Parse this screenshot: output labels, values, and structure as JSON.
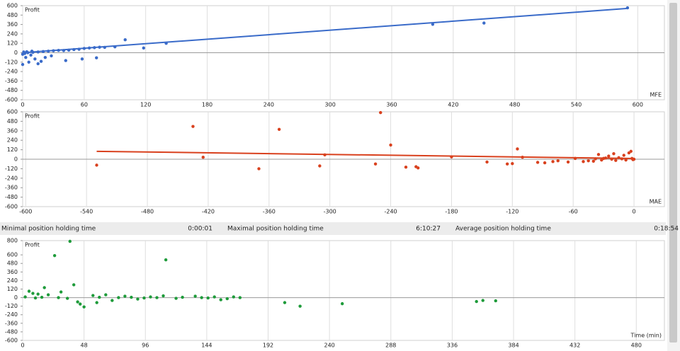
{
  "chart_data": [
    {
      "type": "scatter",
      "y_axis_label": "Profit",
      "x_axis_label": "MFE",
      "color": "#3a6bc9",
      "grid": "x",
      "xlim": [
        0,
        626
      ],
      "ylim": [
        -600,
        600
      ],
      "xticks": [
        0,
        60,
        120,
        180,
        240,
        300,
        360,
        420,
        480,
        540,
        600
      ],
      "yticks": [
        600,
        480,
        360,
        240,
        120,
        0,
        -120,
        -240,
        -360,
        -480,
        -600
      ],
      "x": [
        590,
        450,
        400,
        100,
        140,
        118,
        80,
        70,
        60,
        55,
        45,
        40,
        30,
        25,
        20,
        15,
        10,
        5,
        2,
        0,
        3,
        8,
        12,
        18,
        22,
        28,
        42,
        58,
        72,
        0,
        6,
        15,
        1,
        4,
        9,
        35,
        50,
        65,
        90,
        75
      ],
      "values": [
        572,
        378,
        362,
        165,
        120,
        60,
        68,
        65,
        55,
        45,
        32,
        28,
        25,
        20,
        15,
        10,
        5,
        0,
        -10,
        -20,
        -60,
        -30,
        -80,
        -110,
        -60,
        -40,
        -100,
        -80,
        -65,
        -150,
        -120,
        -140,
        10,
        12,
        20,
        30,
        40,
        60,
        75,
        70
      ],
      "trend": {
        "x": [
          0,
          590
        ],
        "values": [
          0,
          565
        ]
      }
    },
    {
      "type": "scatter",
      "y_axis_label": "Profit",
      "x_axis_label": "MAE",
      "color": "#d9411e",
      "grid": "x",
      "xlim": [
        -603,
        30
      ],
      "ylim": [
        -600,
        600
      ],
      "xticks": [
        -600,
        -540,
        -480,
        -420,
        -360,
        -300,
        -240,
        -180,
        -120,
        -60,
        0
      ],
      "yticks": [
        600,
        480,
        360,
        240,
        120,
        0,
        -120,
        -240,
        -360,
        -480,
        -600
      ],
      "x": [
        -530,
        -435,
        -425,
        -370,
        -350,
        -305,
        -310,
        -255,
        -250,
        -240,
        -225,
        -215,
        -213,
        -180,
        -145,
        -125,
        -120,
        -115,
        -110,
        -95,
        -88,
        -80,
        -75,
        -65,
        -58,
        -50,
        -45,
        -40,
        -35,
        -30,
        -25,
        -20,
        -15,
        -10,
        -5,
        -3,
        -2,
        0,
        -1,
        -8,
        -12,
        -18,
        -22,
        -28,
        -32,
        -38
      ],
      "values": [
        -75,
        415,
        25,
        -120,
        378,
        55,
        -85,
        -60,
        590,
        180,
        -100,
        -95,
        -110,
        30,
        -35,
        -60,
        -55,
        130,
        25,
        -40,
        -45,
        -30,
        -20,
        -35,
        10,
        -30,
        -20,
        -25,
        60,
        10,
        40,
        70,
        20,
        50,
        80,
        100,
        10,
        0,
        -5,
        -10,
        5,
        -15,
        0,
        15,
        -10,
        5
      ],
      "trend": {
        "x": [
          -530,
          0
        ],
        "values": [
          100,
          9
        ]
      }
    },
    {
      "type": "scatter",
      "y_axis_label": "Profit",
      "x_axis_label": "Time (min)",
      "color": "#1e9b3a",
      "grid": "x",
      "xlim": [
        0,
        502
      ],
      "ylim": [
        -600,
        800
      ],
      "xticks": [
        0,
        48,
        96,
        144,
        192,
        240,
        288,
        336,
        384,
        432,
        480
      ],
      "yticks": [
        800,
        600,
        480,
        360,
        240,
        120,
        0,
        -120,
        -240,
        -360,
        -480,
        -600
      ],
      "x": [
        37,
        25,
        112,
        40,
        17,
        5,
        8,
        12,
        20,
        30,
        45,
        48,
        43,
        55,
        58,
        65,
        70,
        80,
        90,
        100,
        110,
        120,
        135,
        150,
        155,
        160,
        165,
        170,
        205,
        217,
        250,
        355,
        360,
        370,
        2,
        10,
        15,
        28,
        35,
        60,
        75,
        85,
        95,
        105,
        125,
        140,
        145
      ],
      "values": [
        790,
        590,
        530,
        180,
        140,
        90,
        60,
        50,
        40,
        80,
        -90,
        -130,
        -60,
        30,
        -70,
        40,
        -40,
        20,
        -20,
        10,
        25,
        -10,
        20,
        10,
        -30,
        -15,
        10,
        0,
        -70,
        -120,
        -85,
        -55,
        -40,
        -45,
        10,
        -5,
        5,
        0,
        -10,
        5,
        0,
        5,
        -5,
        0,
        5,
        0,
        -5
      ]
    }
  ],
  "stats": [
    {
      "label": "Minimal position holding time",
      "value": "0:00:01"
    },
    {
      "label": "Maximal position holding time",
      "value": "6:10:27"
    },
    {
      "label": "Average position holding time",
      "value": "0:18:54"
    }
  ]
}
